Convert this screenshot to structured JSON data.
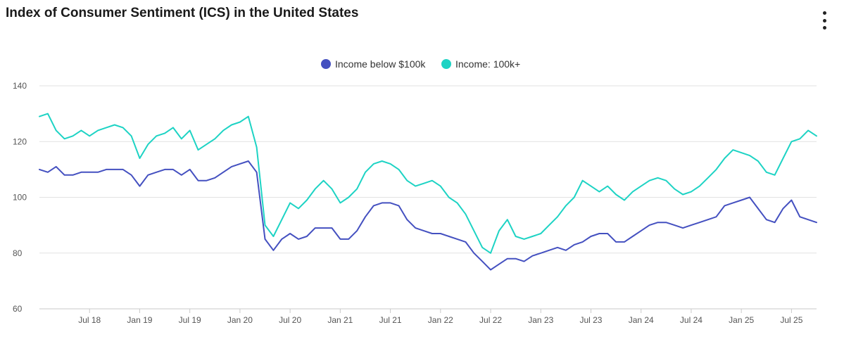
{
  "header": {
    "title": "Index of Consumer Sentiment (ICS) in the United States",
    "menu_icon": "vertical-ellipsis-icon"
  },
  "chart_data": {
    "type": "line",
    "title": "Index of Consumer Sentiment (ICS) in the United States",
    "xlabel": "",
    "ylabel": "",
    "ylim": [
      60,
      140
    ],
    "yticks": [
      60,
      80,
      100,
      120,
      140
    ],
    "xlim": [
      "2018-01",
      "2025-10"
    ],
    "xticks": [
      {
        "label": "Jul 18",
        "date": "2018-07"
      },
      {
        "label": "Jan 19",
        "date": "2019-01"
      },
      {
        "label": "Jul 19",
        "date": "2019-07"
      },
      {
        "label": "Jan 20",
        "date": "2020-01"
      },
      {
        "label": "Jul 20",
        "date": "2020-07"
      },
      {
        "label": "Jan 21",
        "date": "2021-01"
      },
      {
        "label": "Jul 21",
        "date": "2021-07"
      },
      {
        "label": "Jan 22",
        "date": "2022-01"
      },
      {
        "label": "Jul 22",
        "date": "2022-07"
      },
      {
        "label": "Jan 23",
        "date": "2023-01"
      },
      {
        "label": "Jul 23",
        "date": "2023-07"
      },
      {
        "label": "Jan 24",
        "date": "2024-01"
      },
      {
        "label": "Jul 24",
        "date": "2024-07"
      },
      {
        "label": "Jan 25",
        "date": "2025-01"
      },
      {
        "label": "Jul 25",
        "date": "2025-07"
      }
    ],
    "grid": true,
    "legend_position": "top-center",
    "series": [
      {
        "name": "Income below $100k",
        "color": "#4450c0",
        "points": [
          [
            "2018-01",
            110
          ],
          [
            "2018-02",
            109
          ],
          [
            "2018-03",
            111
          ],
          [
            "2018-04",
            108
          ],
          [
            "2018-05",
            108
          ],
          [
            "2018-06",
            109
          ],
          [
            "2018-07",
            109
          ],
          [
            "2018-08",
            109
          ],
          [
            "2018-09",
            110
          ],
          [
            "2018-10",
            110
          ],
          [
            "2018-11",
            110
          ],
          [
            "2018-12",
            108
          ],
          [
            "2019-01",
            104
          ],
          [
            "2019-02",
            108
          ],
          [
            "2019-03",
            109
          ],
          [
            "2019-04",
            110
          ],
          [
            "2019-05",
            110
          ],
          [
            "2019-06",
            108
          ],
          [
            "2019-07",
            110
          ],
          [
            "2019-08",
            106
          ],
          [
            "2019-09",
            106
          ],
          [
            "2019-10",
            107
          ],
          [
            "2019-11",
            109
          ],
          [
            "2019-12",
            111
          ],
          [
            "2020-01",
            112
          ],
          [
            "2020-02",
            113
          ],
          [
            "2020-03",
            109
          ],
          [
            "2020-04",
            85
          ],
          [
            "2020-05",
            81
          ],
          [
            "2020-06",
            85
          ],
          [
            "2020-07",
            87
          ],
          [
            "2020-08",
            85
          ],
          [
            "2020-09",
            86
          ],
          [
            "2020-10",
            89
          ],
          [
            "2020-11",
            89
          ],
          [
            "2020-12",
            89
          ],
          [
            "2021-01",
            85
          ],
          [
            "2021-02",
            85
          ],
          [
            "2021-03",
            88
          ],
          [
            "2021-04",
            93
          ],
          [
            "2021-05",
            97
          ],
          [
            "2021-06",
            98
          ],
          [
            "2021-07",
            98
          ],
          [
            "2021-08",
            97
          ],
          [
            "2021-09",
            92
          ],
          [
            "2021-10",
            89
          ],
          [
            "2021-11",
            88
          ],
          [
            "2021-12",
            87
          ],
          [
            "2022-01",
            87
          ],
          [
            "2022-02",
            86
          ],
          [
            "2022-03",
            85
          ],
          [
            "2022-04",
            84
          ],
          [
            "2022-05",
            80
          ],
          [
            "2022-06",
            77
          ],
          [
            "2022-07",
            74
          ],
          [
            "2022-08",
            76
          ],
          [
            "2022-09",
            78
          ],
          [
            "2022-10",
            78
          ],
          [
            "2022-11",
            77
          ],
          [
            "2022-12",
            79
          ],
          [
            "2023-01",
            80
          ],
          [
            "2023-02",
            81
          ],
          [
            "2023-03",
            82
          ],
          [
            "2023-04",
            81
          ],
          [
            "2023-05",
            83
          ],
          [
            "2023-06",
            84
          ],
          [
            "2023-07",
            86
          ],
          [
            "2023-08",
            87
          ],
          [
            "2023-09",
            87
          ],
          [
            "2023-10",
            84
          ],
          [
            "2023-11",
            84
          ],
          [
            "2023-12",
            86
          ],
          [
            "2024-01",
            88
          ],
          [
            "2024-02",
            90
          ],
          [
            "2024-03",
            91
          ],
          [
            "2024-04",
            91
          ],
          [
            "2024-05",
            90
          ],
          [
            "2024-06",
            89
          ],
          [
            "2024-07",
            90
          ],
          [
            "2024-08",
            91
          ],
          [
            "2024-09",
            92
          ],
          [
            "2024-10",
            93
          ],
          [
            "2024-11",
            97
          ],
          [
            "2024-12",
            98
          ],
          [
            "2025-01",
            99
          ],
          [
            "2025-02",
            100
          ],
          [
            "2025-03",
            96
          ],
          [
            "2025-04",
            92
          ],
          [
            "2025-05",
            91
          ],
          [
            "2025-06",
            96
          ],
          [
            "2025-07",
            99
          ],
          [
            "2025-08",
            93
          ],
          [
            "2025-09",
            92
          ],
          [
            "2025-10",
            91
          ]
        ]
      },
      {
        "name": "Income: 100k+",
        "color": "#1dd3c4",
        "points": [
          [
            "2018-01",
            129
          ],
          [
            "2018-02",
            130
          ],
          [
            "2018-03",
            124
          ],
          [
            "2018-04",
            121
          ],
          [
            "2018-05",
            122
          ],
          [
            "2018-06",
            124
          ],
          [
            "2018-07",
            122
          ],
          [
            "2018-08",
            124
          ],
          [
            "2018-09",
            125
          ],
          [
            "2018-10",
            126
          ],
          [
            "2018-11",
            125
          ],
          [
            "2018-12",
            122
          ],
          [
            "2019-01",
            114
          ],
          [
            "2019-02",
            119
          ],
          [
            "2019-03",
            122
          ],
          [
            "2019-04",
            123
          ],
          [
            "2019-05",
            125
          ],
          [
            "2019-06",
            121
          ],
          [
            "2019-07",
            124
          ],
          [
            "2019-08",
            117
          ],
          [
            "2019-09",
            119
          ],
          [
            "2019-10",
            121
          ],
          [
            "2019-11",
            124
          ],
          [
            "2019-12",
            126
          ],
          [
            "2020-01",
            127
          ],
          [
            "2020-02",
            129
          ],
          [
            "2020-03",
            118
          ],
          [
            "2020-04",
            90
          ],
          [
            "2020-05",
            86
          ],
          [
            "2020-06",
            92
          ],
          [
            "2020-07",
            98
          ],
          [
            "2020-08",
            96
          ],
          [
            "2020-09",
            99
          ],
          [
            "2020-10",
            103
          ],
          [
            "2020-11",
            106
          ],
          [
            "2020-12",
            103
          ],
          [
            "2021-01",
            98
          ],
          [
            "2021-02",
            100
          ],
          [
            "2021-03",
            103
          ],
          [
            "2021-04",
            109
          ],
          [
            "2021-05",
            112
          ],
          [
            "2021-06",
            113
          ],
          [
            "2021-07",
            112
          ],
          [
            "2021-08",
            110
          ],
          [
            "2021-09",
            106
          ],
          [
            "2021-10",
            104
          ],
          [
            "2021-11",
            105
          ],
          [
            "2021-12",
            106
          ],
          [
            "2022-01",
            104
          ],
          [
            "2022-02",
            100
          ],
          [
            "2022-03",
            98
          ],
          [
            "2022-04",
            94
          ],
          [
            "2022-05",
            88
          ],
          [
            "2022-06",
            82
          ],
          [
            "2022-07",
            80
          ],
          [
            "2022-08",
            88
          ],
          [
            "2022-09",
            92
          ],
          [
            "2022-10",
            86
          ],
          [
            "2022-11",
            85
          ],
          [
            "2022-12",
            86
          ],
          [
            "2023-01",
            87
          ],
          [
            "2023-02",
            90
          ],
          [
            "2023-03",
            93
          ],
          [
            "2023-04",
            97
          ],
          [
            "2023-05",
            100
          ],
          [
            "2023-06",
            106
          ],
          [
            "2023-07",
            104
          ],
          [
            "2023-08",
            102
          ],
          [
            "2023-09",
            104
          ],
          [
            "2023-10",
            101
          ],
          [
            "2023-11",
            99
          ],
          [
            "2023-12",
            102
          ],
          [
            "2024-01",
            104
          ],
          [
            "2024-02",
            106
          ],
          [
            "2024-03",
            107
          ],
          [
            "2024-04",
            106
          ],
          [
            "2024-05",
            103
          ],
          [
            "2024-06",
            101
          ],
          [
            "2024-07",
            102
          ],
          [
            "2024-08",
            104
          ],
          [
            "2024-09",
            107
          ],
          [
            "2024-10",
            110
          ],
          [
            "2024-11",
            114
          ],
          [
            "2024-12",
            117
          ],
          [
            "2025-01",
            116
          ],
          [
            "2025-02",
            115
          ],
          [
            "2025-03",
            113
          ],
          [
            "2025-04",
            109
          ],
          [
            "2025-05",
            108
          ],
          [
            "2025-06",
            114
          ],
          [
            "2025-07",
            120
          ],
          [
            "2025-08",
            121
          ],
          [
            "2025-09",
            124
          ],
          [
            "2025-10",
            122
          ]
        ]
      }
    ]
  }
}
